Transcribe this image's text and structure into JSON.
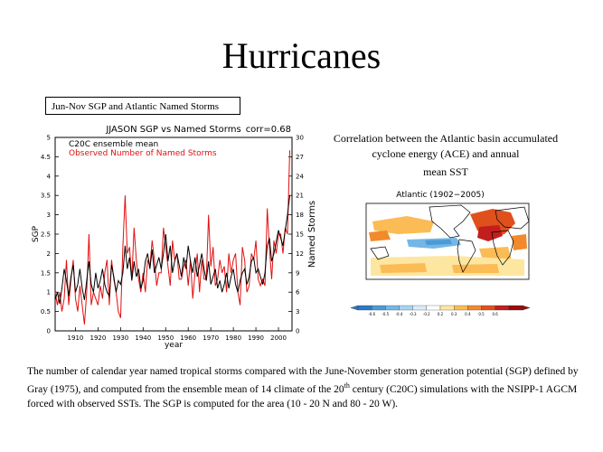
{
  "slide": {
    "title": "Hurricanes",
    "box_label": "Jun-Nov SGP and Atlantic Named Storms",
    "correlation_text_line1": "Correlation between the Atlantic basin accumulated cyclone energy (ACE) and annual",
    "correlation_text_line2": "mean SST",
    "caption_part1": "The number of calendar year named tropical storms compared with the June-November storm generation potential (SGP) defined by Gray (1975), and computed from the ensemble mean of 14 climate of the 20",
    "caption_sup": "th",
    "caption_part2": " century (C20C) simulations with the NSIPP-1 AGCM forced with observed SSTs.  The SGP is computed for the area (10 - 20 N and 80 - 20 W)."
  },
  "chart_data": [
    {
      "type": "line",
      "title": "JJASON SGP vs Named Storms",
      "annotation": "corr=0.68",
      "xlabel": "year",
      "ylabel": "SGP",
      "y2label": "Named Storms",
      "xlim": [
        1901,
        2006
      ],
      "ylim": [
        0,
        5
      ],
      "y2lim": [
        0,
        30
      ],
      "xticks": [
        "1910",
        "1920",
        "1930",
        "1940",
        "1950",
        "1960",
        "1970",
        "1980",
        "1990",
        "2000"
      ],
      "yticks": [
        "0",
        "0.5",
        "1",
        "1.5",
        "2",
        "2.5",
        "3",
        "3.5",
        "4",
        "4.5",
        "5"
      ],
      "y2ticks": [
        "0",
        "3",
        "6",
        "9",
        "12",
        "15",
        "18",
        "21",
        "24",
        "27",
        "30"
      ],
      "legend": [
        "C20C ensemble mean",
        "Observed Number of Named Storms"
      ],
      "colors": {
        "c20c": "#000000",
        "observed": "#e01010"
      },
      "x": [
        1901,
        1902,
        1903,
        1904,
        1905,
        1906,
        1907,
        1908,
        1909,
        1910,
        1911,
        1912,
        1913,
        1914,
        1915,
        1916,
        1917,
        1918,
        1919,
        1920,
        1921,
        1922,
        1923,
        1924,
        1925,
        1926,
        1927,
        1928,
        1929,
        1930,
        1931,
        1932,
        1933,
        1934,
        1935,
        1936,
        1937,
        1938,
        1939,
        1940,
        1941,
        1942,
        1943,
        1944,
        1945,
        1946,
        1947,
        1948,
        1949,
        1950,
        1951,
        1952,
        1953,
        1954,
        1955,
        1956,
        1957,
        1958,
        1959,
        1960,
        1961,
        1962,
        1963,
        1964,
        1965,
        1966,
        1967,
        1968,
        1969,
        1970,
        1971,
        1972,
        1973,
        1974,
        1975,
        1976,
        1977,
        1978,
        1979,
        1980,
        1981,
        1982,
        1983,
        1984,
        1985,
        1986,
        1987,
        1988,
        1989,
        1990,
        1991,
        1992,
        1993,
        1994,
        1995,
        1996,
        1997,
        1998,
        1999,
        2000,
        2001,
        2002,
        2003,
        2004,
        2005
      ],
      "series": [
        {
          "name": "C20C ensemble mean",
          "axis": "left",
          "values": [
            0.8,
            1.0,
            0.7,
            1.1,
            1.6,
            1.3,
            0.9,
            1.4,
            1.7,
            1.0,
            1.2,
            1.6,
            1.1,
            0.8,
            1.3,
            1.8,
            1.2,
            1.0,
            1.5,
            1.1,
            1.3,
            1.6,
            1.2,
            1.0,
            0.9,
            1.7,
            1.4,
            1.0,
            1.3,
            1.2,
            1.5,
            2.2,
            1.6,
            1.9,
            1.3,
            1.8,
            1.4,
            1.6,
            1.1,
            1.3,
            1.8,
            2.0,
            1.6,
            2.1,
            1.5,
            1.7,
            1.9,
            1.6,
            2.0,
            2.5,
            1.8,
            2.2,
            1.5,
            1.8,
            2.0,
            1.7,
            1.4,
            1.9,
            1.6,
            2.2,
            1.8,
            1.5,
            1.9,
            1.4,
            1.7,
            2.0,
            1.6,
            1.3,
            1.8,
            1.2,
            1.4,
            1.6,
            1.1,
            1.3,
            1.0,
            1.2,
            1.5,
            1.1,
            1.4,
            1.6,
            1.2,
            1.0,
            1.3,
            1.5,
            1.6,
            1.2,
            1.4,
            1.8,
            1.9,
            1.5,
            1.6,
            1.4,
            1.2,
            1.5,
            2.2,
            2.4,
            1.8,
            2.0,
            2.3,
            2.6,
            2.4,
            2.2,
            2.6,
            3.0,
            3.5
          ]
        },
        {
          "name": "Observed Number of Named Storms",
          "axis": "right",
          "values": [
            6,
            4,
            6,
            3,
            5,
            11,
            4,
            8,
            11,
            5,
            3,
            7,
            4,
            1,
            6,
            15,
            4,
            6,
            5,
            4,
            7,
            5,
            9,
            11,
            4,
            11,
            8,
            6,
            3,
            2,
            13,
            21,
            12,
            13,
            8,
            16,
            11,
            8,
            6,
            9,
            6,
            11,
            10,
            14,
            11,
            7,
            9,
            9,
            16,
            13,
            10,
            7,
            14,
            11,
            12,
            8,
            8,
            10,
            11,
            7,
            11,
            5,
            9,
            12,
            6,
            11,
            8,
            8,
            18,
            10,
            13,
            7,
            8,
            11,
            9,
            10,
            6,
            12,
            9,
            11,
            12,
            6,
            4,
            13,
            11,
            6,
            7,
            12,
            11,
            14,
            8,
            7,
            8,
            7,
            19,
            13,
            8,
            14,
            12,
            15,
            15,
            12,
            16,
            15,
            28
          ]
        }
      ]
    },
    {
      "type": "heatmap",
      "title": "Atlantic (1902−2005)",
      "colorbar_ticks": [
        "-0.6",
        "-0.5",
        "-0.4",
        "-0.3",
        "-0.2",
        "0.2",
        "0.3",
        "0.4",
        "0.5",
        "0.6"
      ],
      "colorbar_colors": [
        "#2a79c8",
        "#4b9ad8",
        "#74b7e6",
        "#a5d3f2",
        "#d6ecfa",
        "#ffffff",
        "#fde6a0",
        "#fbbb55",
        "#f28a2c",
        "#e0501d",
        "#c31e1e",
        "#9c0a0a"
      ]
    }
  ]
}
